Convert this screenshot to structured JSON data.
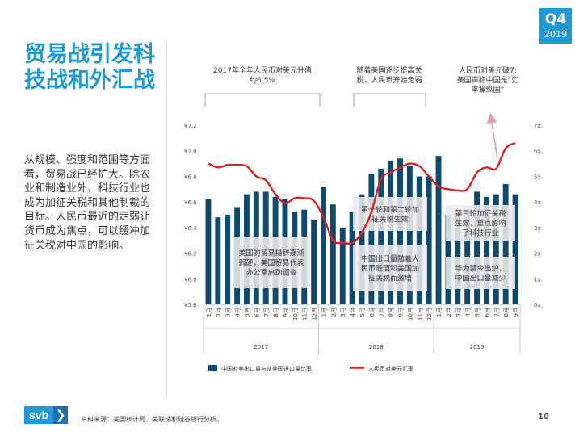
{
  "badge": {
    "quarter": "Q4",
    "year": "2019"
  },
  "title": "贸易战引发科技战和外汇战",
  "body": "从规模、强度和范围等方面看，贸易战已经扩大。除农业和制造业外，科技行业也成为加征关税和其他制裁的目标。人民币最近的走弱让货币成为焦点，可以缓冲加征关税对中国的影响。",
  "footer": {
    "logo": "svb",
    "logo_arrow": "❯",
    "source": "资料来源：美国统计局、美联储和硅谷银行分析。",
    "page": "10"
  },
  "colors": {
    "accent": "#1f9ad6",
    "bar": "#0d4a6e",
    "line": "#e02020",
    "callout_bg": "#eaeaea"
  },
  "chart_data": {
    "type": "bar+line",
    "categories": [
      "1月",
      "2月",
      "3月",
      "4月",
      "5月",
      "6月",
      "7月",
      "8月",
      "9月",
      "10月",
      "11月",
      "12月",
      "1月",
      "2月",
      "3月",
      "4月",
      "5月",
      "6月",
      "7月",
      "8月",
      "9月",
      "10月",
      "11月",
      "12月",
      "1月",
      "2月",
      "3月",
      "4月",
      "5月",
      "6月",
      "7月",
      "8月",
      "9月"
    ],
    "year_groups": [
      {
        "label": "2017",
        "start": 0,
        "end": 11
      },
      {
        "label": "2018",
        "start": 12,
        "end": 23
      },
      {
        "label": "2019",
        "start": 24,
        "end": 32
      }
    ],
    "left_axis": {
      "min": 5.8,
      "max": 7.2,
      "ticks": [
        "¥7.2",
        "¥7.0",
        "¥6.8",
        "¥6.6",
        "¥6.4",
        "¥6.2",
        "¥6.0",
        "¥5.8"
      ]
    },
    "right_axis": {
      "min": 0,
      "max": 7,
      "ticks": [
        "7x",
        "6x",
        "5x",
        "4x",
        "3x",
        "2x",
        "1x",
        "0x"
      ]
    },
    "series": [
      {
        "name": "中国对美出口量与从美国进口量比率",
        "type": "bar",
        "axis": "right",
        "values": [
          4.1,
          3.4,
          3.5,
          3.8,
          4.3,
          4.4,
          4.4,
          4.2,
          4.1,
          3.6,
          3.7,
          3.3,
          4.6,
          3.9,
          3.0,
          3.6,
          4.3,
          5.1,
          5.3,
          5.6,
          5.7,
          5.4,
          5.0,
          5.0,
          5.8,
          3.5,
          3.5,
          3.7,
          4.4,
          4.2,
          4.3,
          4.7,
          4.3
        ]
      },
      {
        "name": "人民币对美元汇率",
        "type": "line",
        "axis": "left",
        "values": [
          6.9,
          6.87,
          6.89,
          6.89,
          6.88,
          6.8,
          6.77,
          6.66,
          6.59,
          6.63,
          6.63,
          6.61,
          6.48,
          6.3,
          6.28,
          6.28,
          6.36,
          6.52,
          6.78,
          6.83,
          6.87,
          6.9,
          6.88,
          6.8,
          6.72,
          6.7,
          6.69,
          6.7,
          6.83,
          6.87,
          6.86,
          7.02,
          7.06
        ]
      }
    ],
    "legend": [
      "中国对美出口量与从美国进口量比率",
      "人民币对美元汇率"
    ],
    "top_annotations": [
      {
        "text": "2017年全年人民币对美元升值约6.5%",
        "lines": [
          "2017年全年人民币对美元升值",
          "约6.5%"
        ],
        "range": [
          0,
          11
        ]
      },
      {
        "text": "随着美国逐步提高关税，人民币开始走弱",
        "lines": [
          "随着美国逐步提高关",
          "税，人民币开始走弱"
        ],
        "range": [
          15,
          20
        ]
      },
      {
        "text": "人民币对美元破7；美国声称中国是“汇率操纵国”",
        "lines": [
          "人民币对美元破7;",
          "美国声称中国是“汇",
          "率操纵国”"
        ]
      }
    ],
    "callouts": [
      {
        "text": "美国的贸易措辞逐渐弱硬，美国贸易代表办公室启动调查",
        "lines": [
          "美国的贸易措辞逐渐",
          "弱硬，美国贸易代表",
          "办公室启动调查"
        ]
      },
      {
        "text": "第一轮和第二轮加征关税生效",
        "lines": [
          "第一轮和第二轮加",
          "征关税生效"
        ]
      },
      {
        "text": "中国出口量随着人民币贬值和美国加征关税而激增",
        "lines": [
          "中国出口量随着人",
          "民币贬值和美国加",
          "征关税而激增"
        ]
      },
      {
        "text": "第三轮加征关税生效，重点影响了科技行业",
        "lines": [
          "第三轮加征关税",
          "生效，重点影响",
          "了科技行业"
        ]
      },
      {
        "text": "华为禁令出炉，中国出口量减少",
        "lines": [
          "华为禁令出炉，",
          "中国出口量减少"
        ]
      }
    ]
  }
}
